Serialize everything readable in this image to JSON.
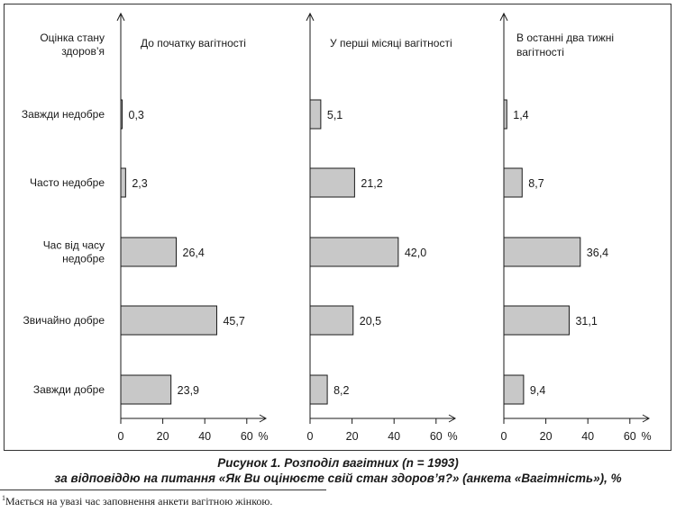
{
  "chart_data": {
    "type": "bar",
    "orientation": "horizontal",
    "row_header": "Оцінка стану здоров’я",
    "categories": [
      "Завжди недобре",
      "Часто недобре",
      "Час від часу недобре",
      "Звичайно добре",
      "Завжди добре"
    ],
    "panels": [
      {
        "title": "До початку вагітності",
        "values": [
          0.3,
          2.3,
          26.4,
          45.7,
          23.9
        ]
      },
      {
        "title": "У перші місяці вагітності",
        "values": [
          5.1,
          21.2,
          42.0,
          20.5,
          8.2
        ]
      },
      {
        "title": "В останні два тижні вагітності",
        "values": [
          1.4,
          8.7,
          36.4,
          31.1,
          9.4
        ]
      }
    ],
    "value_labels": [
      [
        "0,3",
        "2,3",
        "26,4",
        "45,7",
        "23,9"
      ],
      [
        "5,1",
        "21,2",
        "42,0",
        "20,5",
        "8,2"
      ],
      [
        "1,4",
        "8,7",
        "36,4",
        "31,1",
        "9,4"
      ]
    ],
    "xticks": [
      "0",
      "20",
      "40",
      "60"
    ],
    "xlim": [
      0,
      70
    ],
    "xunit": "%",
    "bar_color": "#c8c8c8",
    "bar_edge_color": "#1a1a1a"
  },
  "caption": {
    "line1": "Рисунок 1. Розподіл вагітних (n = 1993)",
    "line2": "за відповіддю на питання «Як Ви оцінюєте свій стан здоров’я?» (анкета «Вагітність»), %"
  },
  "footnote": {
    "mark": "1",
    "text": "Мається на увазі час заповнення анкети вагітною жінкою."
  }
}
